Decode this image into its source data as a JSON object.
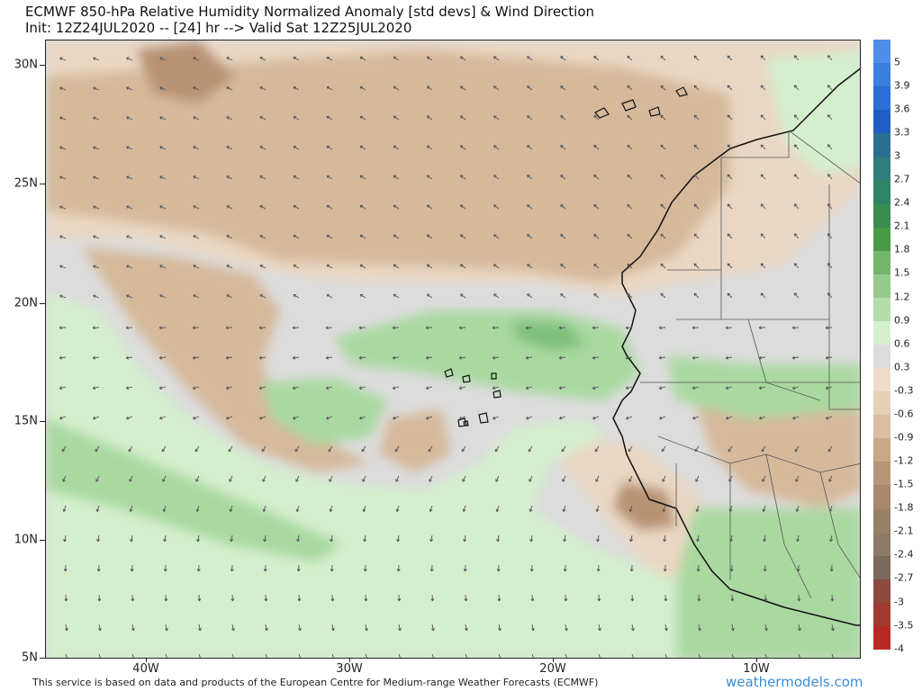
{
  "header": {
    "title": "ECMWF 850-hPa Relative Humidity Normalized Anomaly [std devs] & Wind Direction",
    "subtitle": "Init: 12Z24JUL2020 -- [24] hr --> Valid Sat 12Z25JUL2020"
  },
  "map": {
    "lat_labels": [
      "30N",
      "25N",
      "20N",
      "15N",
      "10N",
      "5N"
    ],
    "lon_labels": [
      "40W",
      "30W",
      "20W",
      "10W"
    ],
    "colors": {
      "ocean_neutral": "#dcdcdc",
      "dry_light": "#ead7c3",
      "dry_mid": "#d6b99b",
      "dry_dark": "#b89373",
      "moist_light": "#d4efcd",
      "moist_mid": "#a9d9a0",
      "moist_dark": "#7fc07a",
      "coast": "#111111",
      "border": "#555555",
      "arrow": "#555555"
    }
  },
  "colorbar": {
    "labels": [
      "5",
      "3.9",
      "3.6",
      "3.3",
      "3",
      "2.7",
      "2.4",
      "2.1",
      "1.8",
      "1.5",
      "1.2",
      "0.9",
      "0.6",
      "0.3",
      "-0.3",
      "-0.6",
      "-0.9",
      "-1.2",
      "-1.5",
      "-1.8",
      "-2.1",
      "-2.4",
      "-2.7",
      "-3",
      "-3.5",
      "-4"
    ],
    "colors": [
      "#4f8fe8",
      "#3a7ee0",
      "#2a6ed6",
      "#1f5fc4",
      "#2a6f92",
      "#2f7d7e",
      "#2e8466",
      "#3a8d4f",
      "#4a9a45",
      "#73b56a",
      "#96c98c",
      "#b6dcaa",
      "#d5efcd",
      "#dcdcdc",
      "#efdcc8",
      "#e6cfb7",
      "#dbbd9f",
      "#c9a787",
      "#b99577",
      "#a8876d",
      "#988068",
      "#8c7a66",
      "#7a6a5b",
      "#8b4a3e",
      "#a13a2f",
      "#b82a25"
    ]
  },
  "footer": {
    "text": "This service is based on data and products of the European Centre for Medium-range Weather Forecasts (ECMWF)",
    "brand": "weathermodels.com"
  }
}
